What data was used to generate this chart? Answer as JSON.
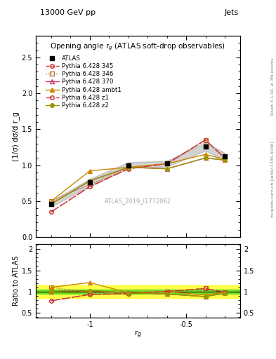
{
  "title_top": "13000 GeV pp",
  "title_right": "Jets",
  "plot_title": "Opening angle r$_g$ (ATLAS soft-drop observables)",
  "watermark": "ATLAS_2019_I1772062",
  "rivet_label": "Rivet 3.1.10, ≥ 3M events",
  "mcplots_label": "mcplots.cern.ch [arXiv:1306.3436]",
  "ylabel_main": "(1/σ) dσ/d r_g",
  "ylabel_ratio": "Ratio to ATLAS",
  "xlabel": "r$_g$",
  "xlim": [
    -1.28,
    -0.22
  ],
  "ylim_main": [
    0.0,
    2.8
  ],
  "ylim_ratio": [
    0.38,
    2.12
  ],
  "x_ticks_main": [
    -1.0,
    -0.5
  ],
  "x_ticks_ratio": [
    -1.0,
    -0.5
  ],
  "yticks_main": [
    0.0,
    0.5,
    1.0,
    1.5,
    2.0,
    2.5
  ],
  "yticks_ratio": [
    0.5,
    1.0,
    1.5,
    2.0
  ],
  "x_values": [
    -1.2,
    -1.0,
    -0.8,
    -0.6,
    -0.4,
    -0.3
  ],
  "atlas_y": [
    0.46,
    0.76,
    1.0,
    1.02,
    1.26,
    1.12
  ],
  "atlas_yerr": [
    0.04,
    0.05,
    0.04,
    0.04,
    0.06,
    0.05
  ],
  "p345_y": [
    0.35,
    0.7,
    0.95,
    1.02,
    1.35,
    1.1
  ],
  "p346_y": [
    0.5,
    0.73,
    0.97,
    1.02,
    1.35,
    1.1
  ],
  "p370_y": [
    0.46,
    0.78,
    0.97,
    0.95,
    1.1,
    1.07
  ],
  "pambt1_y": [
    0.5,
    0.92,
    0.97,
    1.02,
    1.15,
    1.08
  ],
  "pz1_y": [
    0.35,
    0.7,
    0.95,
    1.02,
    1.35,
    1.1
  ],
  "pz2_y": [
    0.46,
    0.78,
    0.97,
    0.95,
    1.1,
    1.07
  ],
  "ratio_p345": [
    0.78,
    0.93,
    0.95,
    1.0,
    1.07,
    0.98
  ],
  "ratio_p346": [
    1.1,
    0.97,
    0.97,
    1.0,
    1.07,
    0.98
  ],
  "ratio_p370": [
    1.0,
    1.02,
    0.97,
    0.94,
    0.88,
    0.96
  ],
  "ratio_pambt1": [
    1.1,
    1.21,
    0.97,
    1.0,
    0.915,
    0.97
  ],
  "ratio_pz1": [
    0.78,
    0.93,
    0.95,
    1.0,
    1.07,
    0.98
  ],
  "ratio_pz2": [
    1.0,
    1.02,
    0.97,
    0.94,
    0.88,
    0.96
  ],
  "color_345": "#cc3333",
  "color_346": "#b87333",
  "color_370": "#cc3366",
  "color_ambt1": "#cc8800",
  "color_z1": "#cc3333",
  "color_z2": "#999900",
  "atlas_color": "#000000",
  "green_band": 0.05,
  "yellow_band": 0.15
}
